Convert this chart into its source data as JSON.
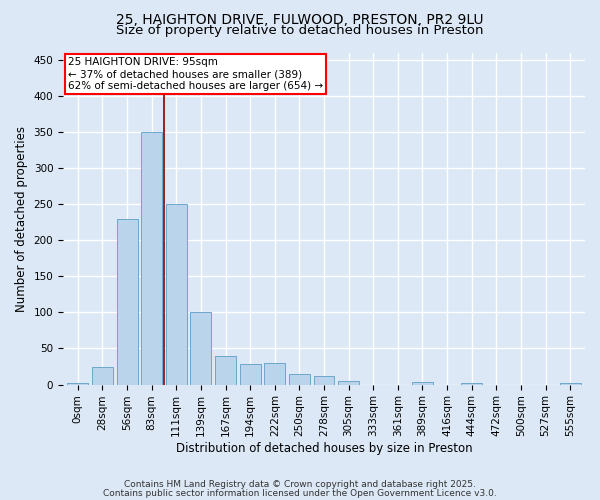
{
  "title_line1": "25, HAIGHTON DRIVE, FULWOOD, PRESTON, PR2 9LU",
  "title_line2": "Size of property relative to detached houses in Preston",
  "xlabel": "Distribution of detached houses by size in Preston",
  "ylabel": "Number of detached properties",
  "bar_labels": [
    "0sqm",
    "28sqm",
    "56sqm",
    "83sqm",
    "111sqm",
    "139sqm",
    "167sqm",
    "194sqm",
    "222sqm",
    "250sqm",
    "278sqm",
    "305sqm",
    "333sqm",
    "361sqm",
    "389sqm",
    "416sqm",
    "444sqm",
    "472sqm",
    "500sqm",
    "527sqm",
    "555sqm"
  ],
  "bar_values": [
    2,
    25,
    230,
    350,
    250,
    100,
    40,
    28,
    30,
    15,
    12,
    5,
    0,
    0,
    3,
    0,
    2,
    0,
    0,
    0,
    2
  ],
  "bar_color": "#bad4eb",
  "bar_edge_color": "#6ea6cc",
  "vline_x": 3.5,
  "annotation_text": "25 HAIGHTON DRIVE: 95sqm\n← 37% of detached houses are smaller (389)\n62% of semi-detached houses are larger (654) →",
  "annotation_box_color": "white",
  "annotation_box_edge": "red",
  "vline_color": "#8b0000",
  "ylim": [
    0,
    460
  ],
  "yticks": [
    0,
    50,
    100,
    150,
    200,
    250,
    300,
    350,
    400,
    450
  ],
  "bg_color": "#dce8f5",
  "grid_color": "white",
  "footer_line1": "Contains HM Land Registry data © Crown copyright and database right 2025.",
  "footer_line2": "Contains public sector information licensed under the Open Government Licence v3.0.",
  "title_fontsize": 10,
  "subtitle_fontsize": 9.5,
  "axis_label_fontsize": 8.5,
  "tick_fontsize": 7.5,
  "footer_fontsize": 6.5,
  "annotation_fontsize": 7.5
}
